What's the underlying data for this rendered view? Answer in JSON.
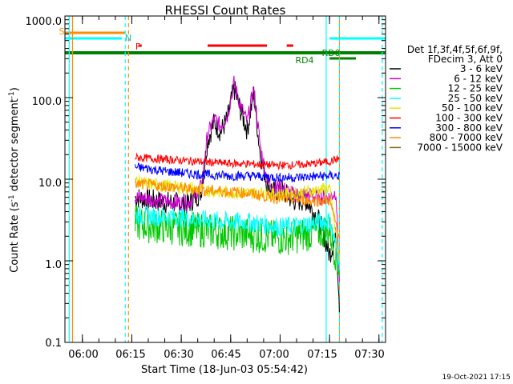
{
  "chart_data": {
    "type": "line",
    "title": "RHESSI Count Rates",
    "xlabel": "Start Time (18-Jun-03 05:54:42)",
    "ylabel": "Count Rate (s⁻¹ detector segment⁻¹)",
    "ylabel_main": "Count Rate (s",
    "ylabel_sup1": "-1",
    "ylabel_mid": " detector segment",
    "ylabel_sup2": "-1",
    "ylabel_end": ")",
    "y_scale": "log",
    "ylim": [
      0.1,
      1000
    ],
    "xlim": [
      "05:54:42",
      "07:32:00"
    ],
    "x_ticks": [
      "06:00",
      "06:15",
      "06:30",
      "06:45",
      "07:00",
      "07:15",
      "07:30"
    ],
    "y_ticks": [
      "0.1",
      "1.0",
      "10.0",
      "100.0",
      "1000.0"
    ],
    "grid": false,
    "legend_position": "right",
    "legend_header": [
      "Det 1f,3f,4f,5f,6f,9f,",
      "FDecim 3, Att 0"
    ],
    "series": [
      {
        "name": "3 - 6 keV",
        "color": "#000000",
        "x": [
          "06:16",
          "06:20",
          "06:24",
          "06:28",
          "06:32",
          "06:36",
          "06:38",
          "06:40",
          "06:42",
          "06:44",
          "06:46",
          "06:48",
          "06:50",
          "06:52",
          "06:54",
          "06:56",
          "06:58",
          "07:00",
          "07:04",
          "07:08",
          "07:12",
          "07:15",
          "07:17",
          "07:18"
        ],
        "y": [
          6.0,
          5.6,
          5.3,
          5.1,
          4.9,
          7.0,
          30,
          50,
          38,
          55,
          130,
          70,
          40,
          110,
          20,
          9,
          7,
          7.5,
          5.5,
          5.5,
          3.0,
          1.2,
          2.0,
          0.3
        ]
      },
      {
        "name": "6 - 12 keV",
        "color": "#d000d0",
        "x": [
          "06:16",
          "06:20",
          "06:24",
          "06:28",
          "06:32",
          "06:36",
          "06:38",
          "06:40",
          "06:42",
          "06:44",
          "06:46",
          "06:48",
          "06:50",
          "06:52",
          "06:54",
          "06:56",
          "06:58",
          "07:00",
          "07:04",
          "07:08",
          "07:12",
          "07:15",
          "07:17",
          "07:18"
        ],
        "y": [
          6.0,
          5.7,
          5.4,
          5.2,
          5.1,
          8.0,
          35,
          55,
          45,
          60,
          150,
          80,
          50,
          130,
          25,
          10,
          8,
          8,
          6.5,
          6.5,
          6.0,
          6.0,
          7.0,
          0.5
        ]
      },
      {
        "name": "12 - 25 keV",
        "color": "#00c800",
        "x": [
          "06:16",
          "06:20",
          "06:25",
          "06:30",
          "06:35",
          "06:40",
          "06:45",
          "06:50",
          "06:55",
          "07:00",
          "07:05",
          "07:10",
          "07:15",
          "07:18"
        ],
        "y": [
          2.9,
          2.7,
          2.6,
          2.5,
          2.4,
          2.3,
          2.2,
          2.1,
          2.0,
          1.9,
          2.0,
          2.2,
          2.4,
          0.8
        ]
      },
      {
        "name": "25 - 50 keV",
        "color": "#00ffff",
        "x": [
          "06:16",
          "06:20",
          "06:25",
          "06:30",
          "06:35",
          "06:40",
          "06:45",
          "06:50",
          "06:55",
          "07:00",
          "07:05",
          "07:10",
          "07:15",
          "07:18"
        ],
        "y": [
          3.6,
          3.5,
          3.5,
          3.4,
          3.2,
          3.1,
          3.0,
          3.0,
          2.8,
          2.6,
          2.7,
          2.9,
          3.1,
          1.0
        ]
      },
      {
        "name": "50 - 100 keV",
        "color": "#e6e600",
        "x": [
          "06:16",
          "06:20",
          "06:25",
          "06:30",
          "06:35",
          "06:40",
          "06:45",
          "06:50",
          "06:55",
          "07:00",
          "07:05",
          "07:10",
          "07:15",
          "07:18"
        ],
        "y": [
          9.5,
          8.8,
          8.3,
          8.0,
          7.5,
          7.1,
          6.9,
          6.8,
          6.7,
          6.5,
          6.8,
          7.2,
          7.8,
          1.0
        ]
      },
      {
        "name": "100 - 300 keV",
        "color": "#ff0000",
        "x": [
          "06:16",
          "06:20",
          "06:25",
          "06:30",
          "06:35",
          "06:40",
          "06:45",
          "06:50",
          "06:55",
          "07:00",
          "07:05",
          "07:10",
          "07:15",
          "07:18"
        ],
        "y": [
          18.5,
          18.0,
          17.5,
          17.0,
          16.5,
          16.0,
          15.5,
          15.5,
          15.0,
          14.8,
          15.0,
          15.5,
          16.5,
          18
        ]
      },
      {
        "name": "300 - 800 keV",
        "color": "#0000ff",
        "x": [
          "06:16",
          "06:20",
          "06:25",
          "06:30",
          "06:35",
          "06:40",
          "06:45",
          "06:50",
          "06:55",
          "07:00",
          "07:05",
          "07:10",
          "07:15",
          "07:18"
        ],
        "y": [
          14.0,
          13.5,
          12.5,
          12.0,
          11.5,
          11.2,
          11.0,
          11.0,
          10.8,
          10.5,
          10.5,
          10.8,
          11.0,
          11
        ]
      },
      {
        "name": "800 - 7000 keV",
        "color": "#ff8c00",
        "x": [
          "06:16",
          "06:20",
          "06:25",
          "06:30",
          "06:35",
          "06:40",
          "06:45",
          "06:50",
          "06:55",
          "07:00",
          "07:05",
          "07:10",
          "07:15",
          "07:18"
        ],
        "y": [
          8.8,
          8.5,
          8.2,
          7.8,
          7.4,
          7.2,
          7.0,
          6.8,
          6.2,
          5.8,
          5.6,
          5.4,
          5.5,
          2.0
        ]
      },
      {
        "name": "7000 - 15000 keV",
        "color": "#8b6914",
        "x": [],
        "y": []
      }
    ],
    "annotations": {
      "flags": [
        {
          "label": "S",
          "color": "#ff8c00",
          "start": "05:54:42",
          "end": "06:13"
        },
        {
          "label": "N",
          "color": "#00ffff",
          "start": "05:54:42",
          "end": "06:12"
        },
        {
          "label": "N",
          "color": "#00ffff",
          "start": "07:15",
          "end": "07:32"
        },
        {
          "label": "F",
          "color": "#ff0000",
          "start": "06:17",
          "end": "06:18"
        },
        {
          "label": "F",
          "color": "#ff0000",
          "start": "06:38",
          "end": "06:56"
        },
        {
          "label": "F",
          "color": "#ff0000",
          "start": "07:02",
          "end": "07:04"
        },
        {
          "label": "",
          "color": "#008000",
          "start": "05:54:42",
          "end": "07:32"
        },
        {
          "label": "RD0",
          "color": "#008000",
          "start": "07:15",
          "end": "07:23"
        },
        {
          "label": "RD4",
          "color": "#008000",
          "start": "",
          "end": ""
        }
      ],
      "vlines": [
        {
          "time": "05:56",
          "color": "#00ffff",
          "style": "solid"
        },
        {
          "time": "05:57",
          "color": "#ff8c00",
          "style": "solid"
        },
        {
          "time": "06:13",
          "color": "#00ffff",
          "style": "dashed"
        },
        {
          "time": "06:14",
          "color": "#ff8c00",
          "style": "dashed"
        },
        {
          "time": "07:14",
          "color": "#00ffff",
          "style": "solid"
        },
        {
          "time": "07:18",
          "color": "#ff8c00",
          "style": "solid"
        },
        {
          "time": "07:18",
          "color": "#00ffff",
          "style": "dashed"
        },
        {
          "time": "07:31",
          "color": "#00ffff",
          "style": "dashed"
        }
      ]
    }
  },
  "footer": {
    "timestamp": "19-Oct-2021 17:15"
  }
}
